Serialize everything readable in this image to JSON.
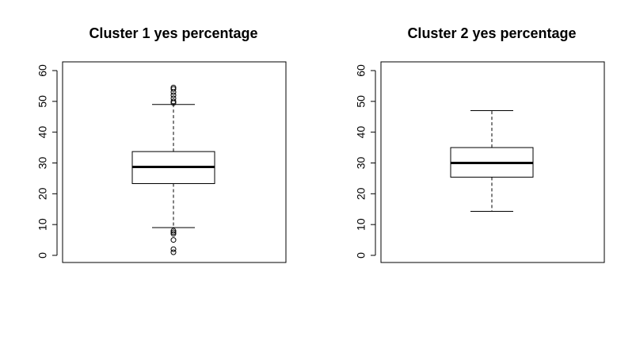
{
  "chart_data": [
    {
      "type": "boxplot",
      "title": "Cluster 1 yes percentage",
      "xlabel": "",
      "ylabel": "",
      "ylim": [
        0,
        62
      ],
      "yticks": [
        0,
        10,
        20,
        30,
        40,
        50,
        60
      ],
      "grid": false,
      "box": {
        "whisker_low": 9,
        "q1": 23.3,
        "median": 28.7,
        "q3": 33.7,
        "whisker_high": 49
      },
      "outliers": [
        1,
        2,
        5,
        7,
        7.5,
        8,
        49.5,
        50,
        51,
        52,
        53,
        54,
        54.5
      ]
    },
    {
      "type": "boxplot",
      "title": "Cluster 2 yes percentage",
      "xlabel": "",
      "ylabel": "",
      "ylim": [
        0,
        62
      ],
      "yticks": [
        0,
        10,
        20,
        30,
        40,
        50,
        60
      ],
      "grid": false,
      "box": {
        "whisker_low": 14.3,
        "q1": 25.4,
        "median": 30,
        "q3": 35,
        "whisker_high": 47
      },
      "outliers": []
    }
  ]
}
